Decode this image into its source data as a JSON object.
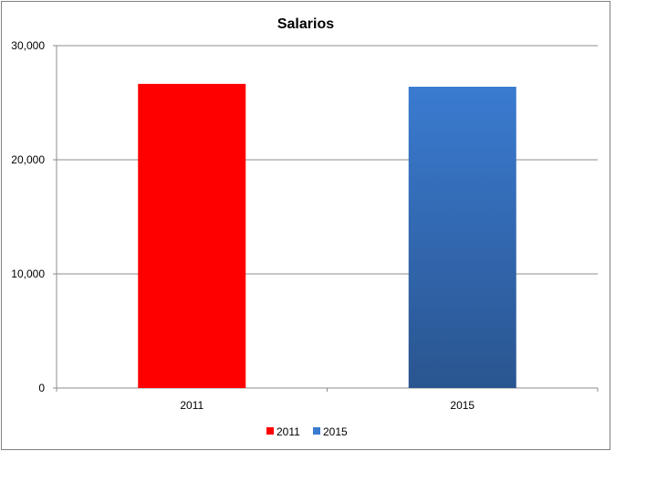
{
  "chart_data": {
    "type": "bar",
    "title": "Salarios",
    "xlabel": "",
    "ylabel": "",
    "categories": [
      "2011",
      "2015"
    ],
    "series": [
      {
        "name": "2011",
        "values": [
          26650,
          null
        ],
        "color": "#ff0000"
      },
      {
        "name": "2015",
        "values": [
          null,
          26400
        ],
        "color": "#3a7bd0",
        "color_dark": "#2a5590"
      }
    ],
    "ylim": [
      0,
      30000
    ],
    "yticks": [
      "0",
      "10,000",
      "20,000",
      "30,000"
    ],
    "ytick_values": [
      0,
      10000,
      20000,
      30000
    ],
    "grid": true,
    "legend": {
      "placement": "bottom",
      "entries": [
        "2011",
        "2015"
      ]
    }
  }
}
